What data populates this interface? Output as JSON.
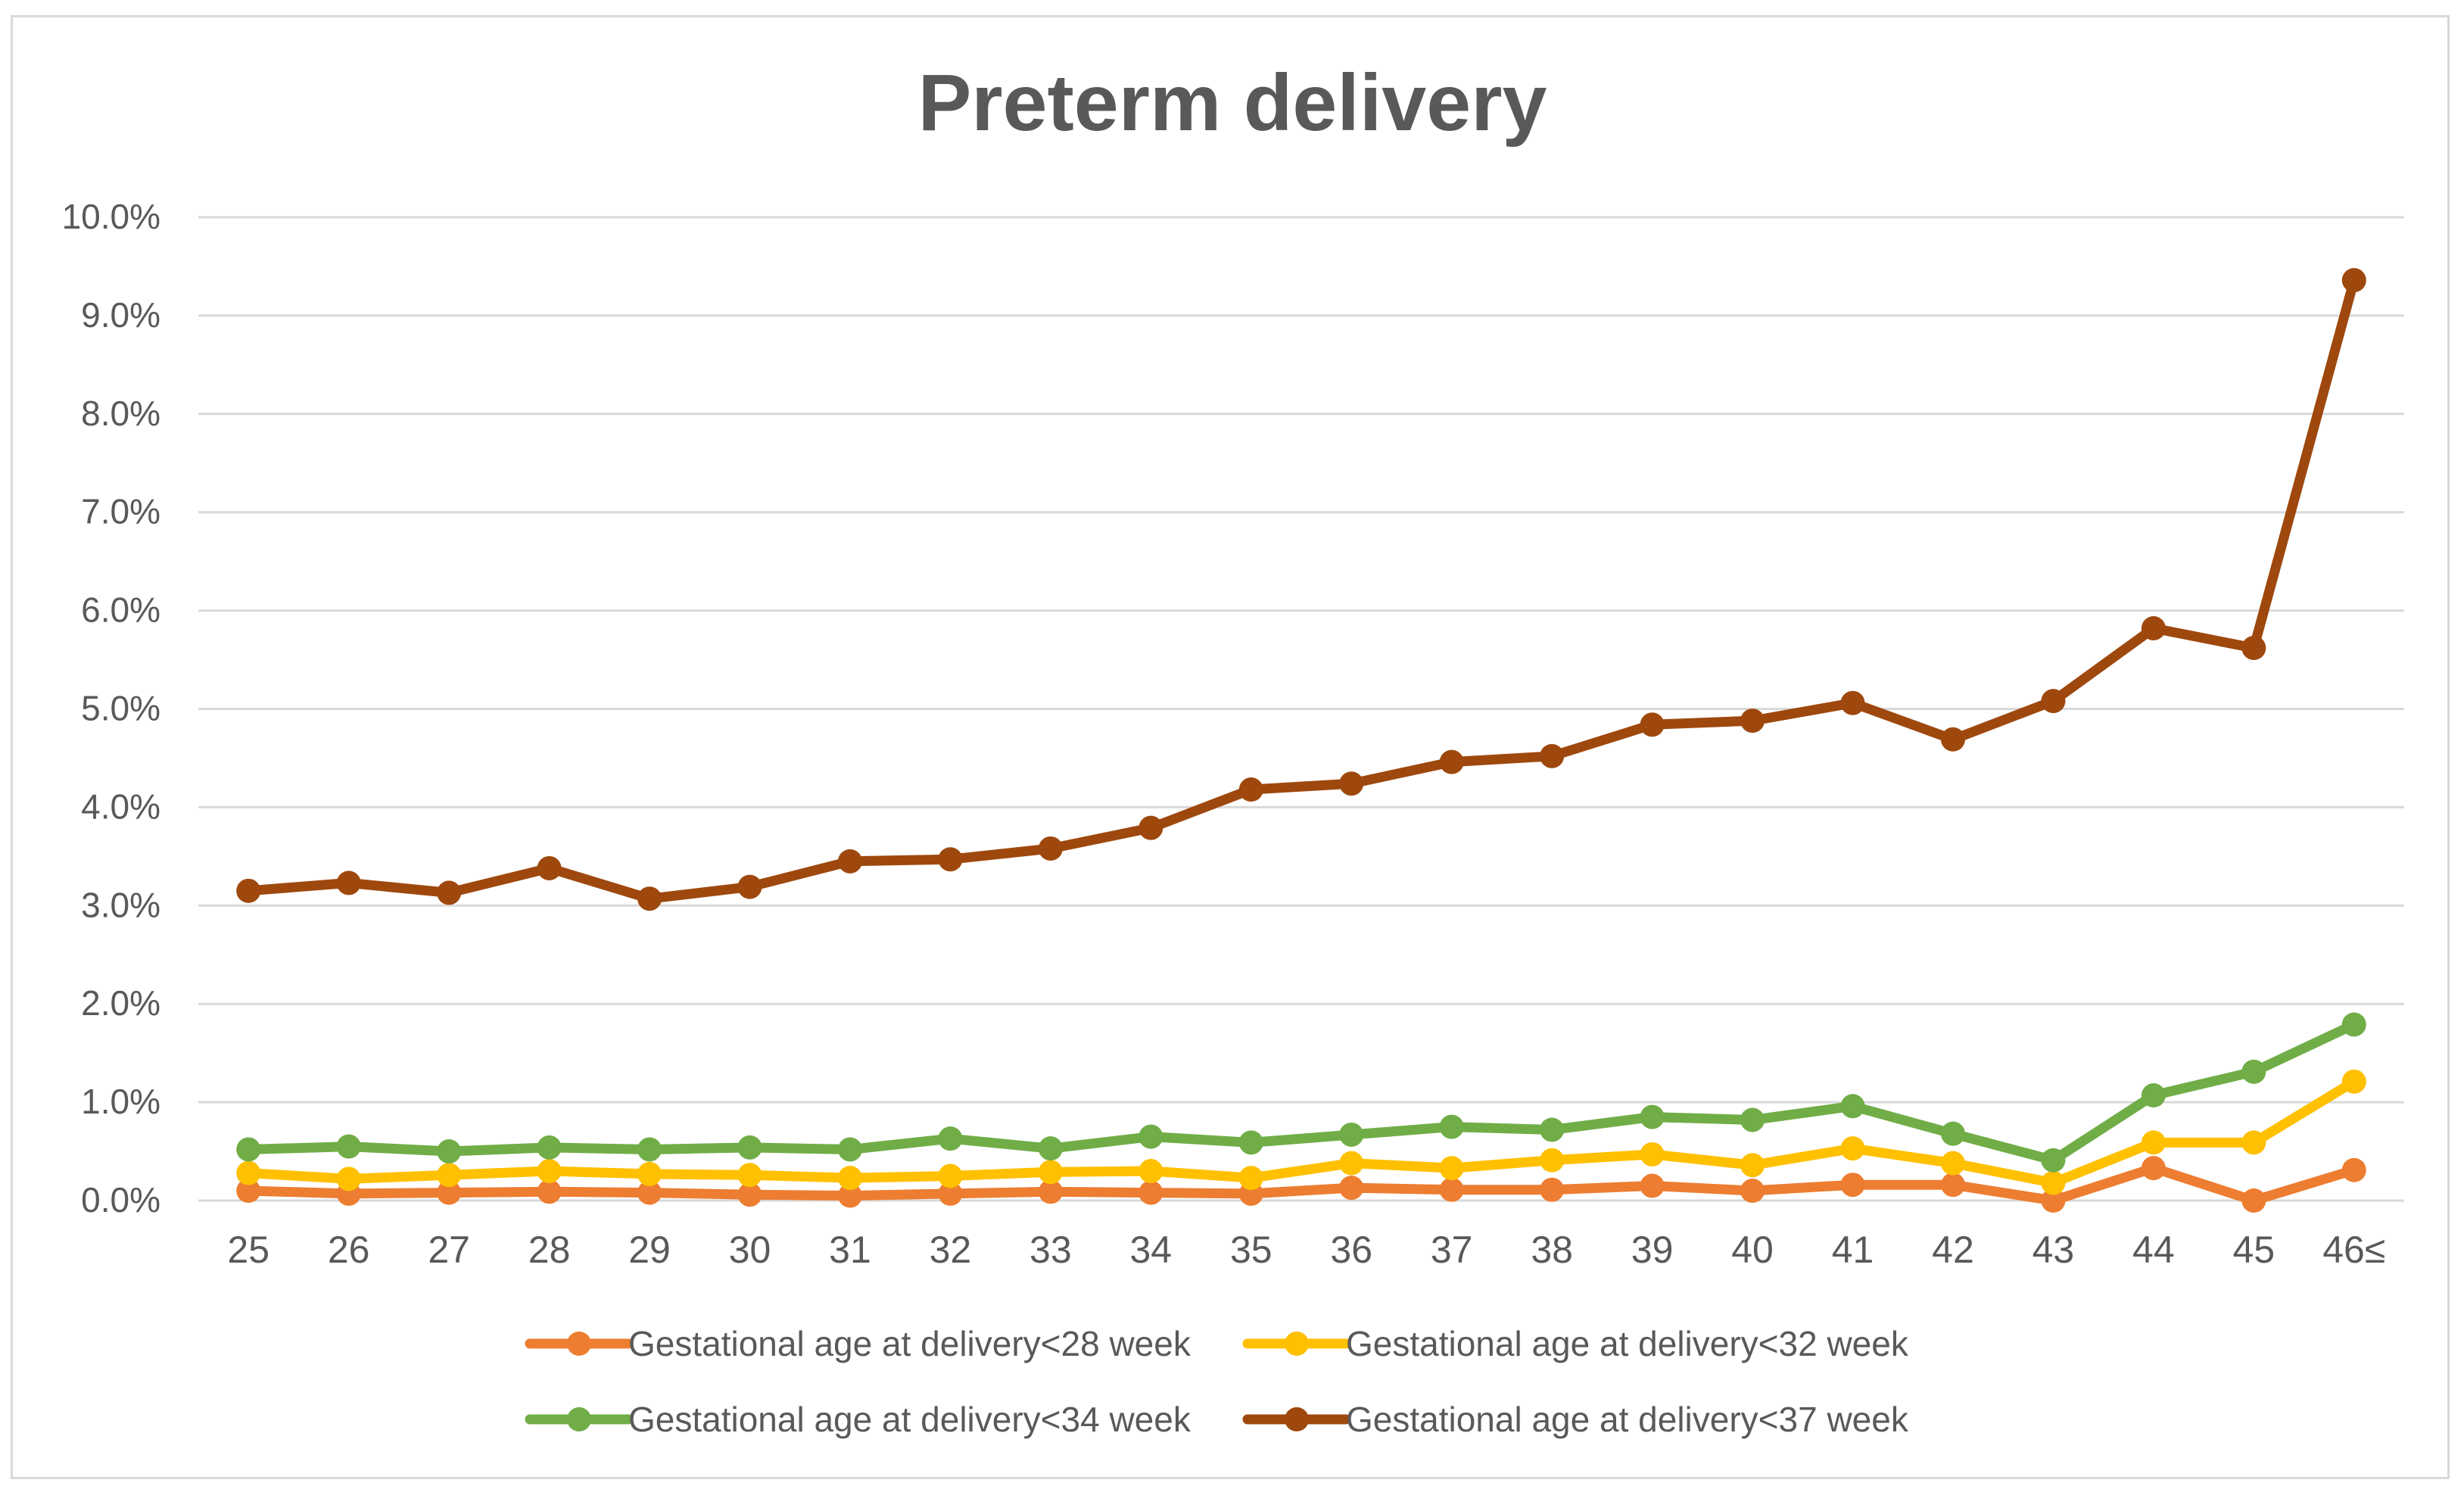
{
  "chart_data": {
    "type": "line",
    "title": "Preterm delivery",
    "xlabel": "",
    "ylabel": "",
    "ylim": [
      0,
      10
    ],
    "y_ticks": [
      "0.0%",
      "1.0%",
      "2.0%",
      "3.0%",
      "4.0%",
      "5.0%",
      "6.0%",
      "7.0%",
      "8.0%",
      "9.0%",
      "10.0%"
    ],
    "grid": true,
    "legend_position": "bottom",
    "categories": [
      "25",
      "26",
      "27",
      "28",
      "29",
      "30",
      "31",
      "32",
      "33",
      "34",
      "35",
      "36",
      "37",
      "38",
      "39",
      "40",
      "41",
      "42",
      "43",
      "44",
      "45",
      "46≤"
    ],
    "series": [
      {
        "name": "Gestational age at delivery<28 week",
        "color": "#ed7d31",
        "values": [
          0.1,
          0.07,
          0.08,
          0.09,
          0.08,
          0.06,
          0.05,
          0.07,
          0.09,
          0.08,
          0.07,
          0.13,
          0.11,
          0.11,
          0.15,
          0.1,
          0.16,
          0.16,
          0.0,
          0.33,
          0.0,
          0.31
        ]
      },
      {
        "name": "Gestational age at delivery<32 week",
        "color": "#ffc000",
        "values": [
          0.28,
          0.22,
          0.26,
          0.3,
          0.27,
          0.26,
          0.23,
          0.25,
          0.29,
          0.3,
          0.23,
          0.38,
          0.33,
          0.41,
          0.47,
          0.36,
          0.53,
          0.38,
          0.18,
          0.59,
          0.59,
          1.21
        ]
      },
      {
        "name": "Gestational age at delivery<34 week",
        "color": "#70ad47",
        "values": [
          0.52,
          0.55,
          0.5,
          0.54,
          0.52,
          0.54,
          0.52,
          0.63,
          0.53,
          0.65,
          0.59,
          0.67,
          0.75,
          0.72,
          0.85,
          0.82,
          0.96,
          0.68,
          0.41,
          1.07,
          1.31,
          1.79
        ]
      },
      {
        "name": "Gestational age at delivery<37 week",
        "color": "#9e480e",
        "values": [
          3.15,
          3.23,
          3.13,
          3.38,
          3.07,
          3.19,
          3.45,
          3.47,
          3.58,
          3.79,
          4.18,
          4.24,
          4.46,
          4.52,
          4.84,
          4.88,
          5.06,
          4.69,
          5.08,
          5.82,
          5.62,
          9.36
        ]
      }
    ]
  }
}
